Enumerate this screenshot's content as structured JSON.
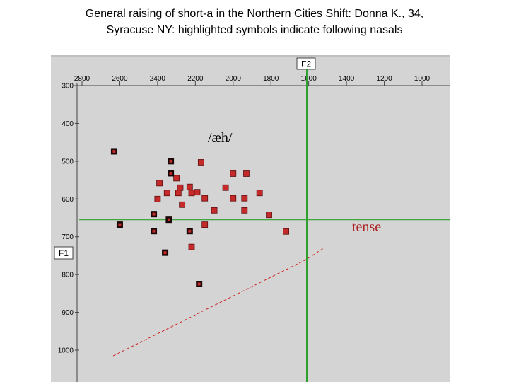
{
  "title": {
    "line1": "General raising of short-a in the Northern Cities Shift: Donna K., 34,",
    "line2": "Syracuse NY: highlighted symbols indicate following nasals"
  },
  "colors": {
    "panel_bg": "#d4d4d4",
    "crosshair": "#2ea02e",
    "marker_fill": "#c42a2a",
    "marker_nasal_border": "#1a0606",
    "tense_line": "#cc2222",
    "tense_label": "#aa2222"
  },
  "chart_data": {
    "type": "scatter",
    "x_axis": {
      "label": "F2",
      "reversed": true,
      "ticks": [
        2800,
        2600,
        2400,
        2200,
        2000,
        1800,
        1600,
        1400,
        1200,
        1000
      ]
    },
    "y_axis": {
      "label": "F1",
      "reversed": true,
      "ticks": [
        300,
        400,
        500,
        600,
        700,
        800,
        900,
        1000
      ]
    },
    "annotations": {
      "vowel_label": "/æh/",
      "tense_label": "tense"
    },
    "reference_lines": {
      "f2": 1610,
      "f1": 655
    },
    "tense_boundary": [
      [
        2635,
        1015
      ],
      [
        1620,
        762
      ],
      [
        1520,
        730
      ]
    ],
    "series": [
      {
        "role": "oral",
        "points": [
          [
            2170,
            503
          ],
          [
            2000,
            533
          ],
          [
            1930,
            533
          ],
          [
            2300,
            545
          ],
          [
            2390,
            558
          ],
          [
            2230,
            568
          ],
          [
            2040,
            570
          ],
          [
            2280,
            570
          ],
          [
            2190,
            582
          ],
          [
            2350,
            584
          ],
          [
            2290,
            584
          ],
          [
            2220,
            584
          ],
          [
            1860,
            584
          ],
          [
            2000,
            598
          ],
          [
            1940,
            598
          ],
          [
            2150,
            598
          ],
          [
            2400,
            600
          ],
          [
            2270,
            615
          ],
          [
            2100,
            630
          ],
          [
            1940,
            630
          ],
          [
            1810,
            642
          ],
          [
            2150,
            668
          ],
          [
            1720,
            686
          ],
          [
            2220,
            727
          ]
        ]
      },
      {
        "role": "nasal",
        "points": [
          [
            2630,
            474
          ],
          [
            2330,
            500
          ],
          [
            2330,
            532
          ],
          [
            2420,
            640
          ],
          [
            2340,
            655
          ],
          [
            2600,
            668
          ],
          [
            2420,
            685
          ],
          [
            2230,
            685
          ],
          [
            2360,
            742
          ],
          [
            2180,
            825
          ]
        ]
      }
    ]
  }
}
